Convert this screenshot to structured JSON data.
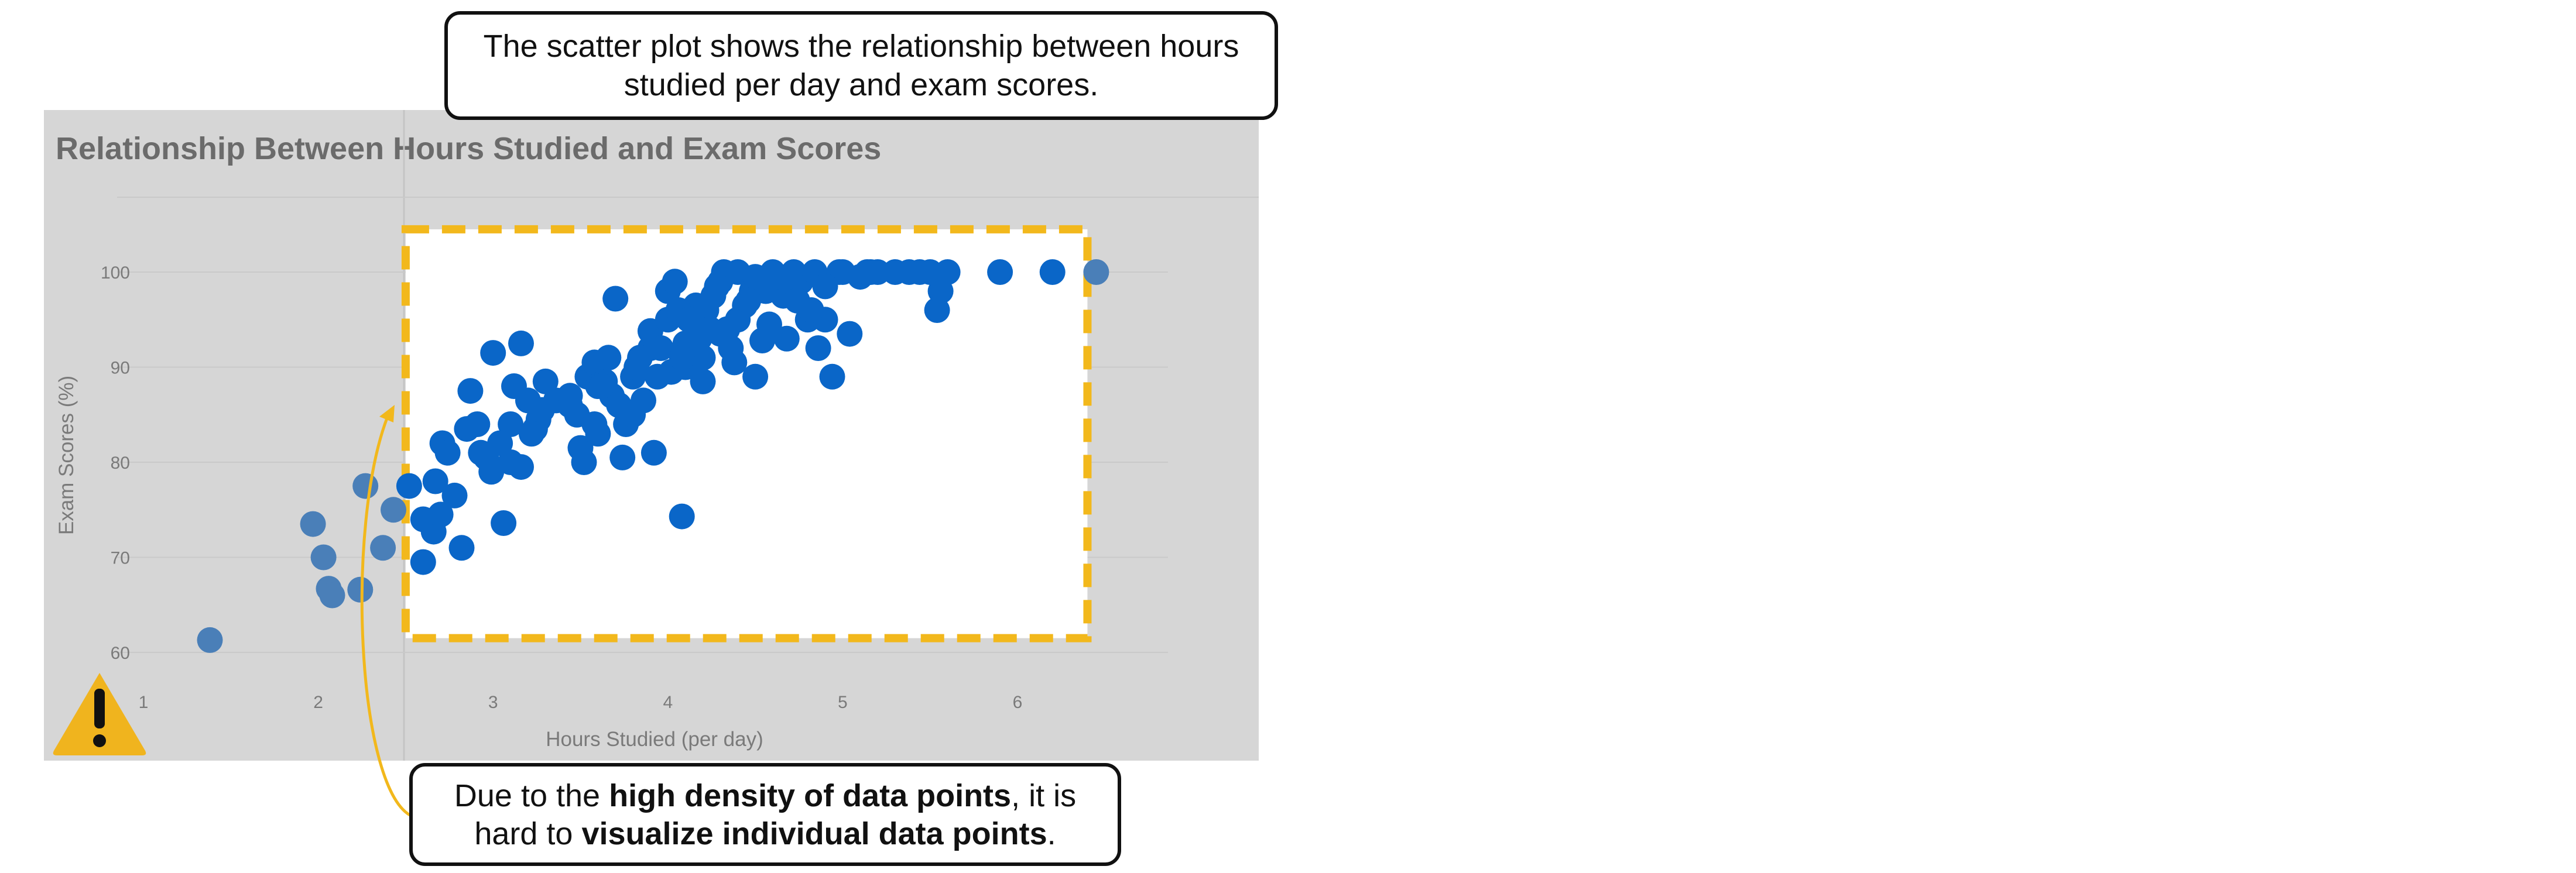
{
  "annotation_top": {
    "line1": "The scatter plot shows the relationship between hours",
    "line2": "studied per day and exam scores."
  },
  "annotation_bottom": {
    "line1_pre": "Due to the ",
    "line1_bold": "high density of data points",
    "line1_post": ", it is",
    "line2_pre": "hard to ",
    "line2_bold": "visualize individual data points",
    "line2_post": "."
  },
  "warning_icon": {
    "icon": "warning-triangle-icon",
    "color": "#f0b41e"
  },
  "colors": {
    "panel": "#d6d6d6",
    "point": "#0a66c8",
    "point_faded": "#4a7fb8",
    "highlight_border": "#f2b81c",
    "title": "#6b6b6b",
    "axis_text": "#7a7a7a"
  },
  "chart_data": {
    "type": "scatter",
    "title": "Relationship Between Hours Studied and Exam Scores",
    "xlabel": "Hours Studied (per day)",
    "ylabel": "Exam Scores (%)",
    "xlim": [
      1,
      6.8
    ],
    "ylim": [
      58,
      102
    ],
    "xticks": [
      "1",
      "2",
      "3",
      "4",
      "5",
      "6"
    ],
    "yticks": [
      "60",
      "70",
      "80",
      "90",
      "100"
    ],
    "grid": "horizontal",
    "highlight_region": {
      "x": [
        2.5,
        6.4
      ],
      "y": [
        61.5,
        104.5
      ]
    },
    "x": [
      1.38,
      1.97,
      2.03,
      2.06,
      2.08,
      2.24,
      2.27,
      2.37,
      2.43,
      2.52,
      2.6,
      2.6,
      2.66,
      2.67,
      2.7,
      2.71,
      2.74,
      2.82,
      2.85,
      2.87,
      2.91,
      2.93,
      2.99,
      3.0,
      3.06,
      3.1,
      3.1,
      3.16,
      3.2,
      3.24,
      3.26,
      3.3,
      3.36,
      3.4,
      3.44,
      3.5,
      3.52,
      3.54,
      3.58,
      3.6,
      3.6,
      3.64,
      3.66,
      3.7,
      3.74,
      3.76,
      3.8,
      3.8,
      3.82,
      3.86,
      3.9,
      3.92,
      4.0,
      4.0,
      4.04,
      4.08,
      4.1,
      4.1,
      4.14,
      4.16,
      4.2,
      4.2,
      4.22,
      4.26,
      4.3,
      4.32,
      4.36,
      4.4,
      4.44,
      4.48,
      4.5,
      4.54,
      4.6,
      4.66,
      4.7,
      4.72,
      4.76,
      4.8,
      4.84,
      4.9,
      4.94,
      4.98,
      5.04,
      5.1,
      5.14,
      5.16,
      5.3,
      5.38,
      5.44,
      5.5,
      5.54,
      5.56,
      5.6,
      5.9,
      6.2,
      6.45,
      3.12,
      3.48,
      3.96,
      4.06,
      4.18,
      4.28,
      4.38,
      4.58,
      4.74,
      4.86,
      3.04,
      3.28,
      3.68,
      3.9,
      4.12,
      4.24,
      4.5,
      4.68,
      4.82,
      5.0,
      2.78,
      2.96,
      3.22,
      3.44,
      3.62,
      3.84,
      4.02,
      4.3,
      4.4,
      4.56,
      3.16,
      3.58,
      3.72,
      3.94,
      4.08,
      4.34,
      4.46,
      4.64,
      4.9,
      5.2
    ],
    "y": [
      61.3,
      73.5,
      70.0,
      66.7,
      66.0,
      66.6,
      77.5,
      71.0,
      75.0,
      77.5,
      74.0,
      69.5,
      72.7,
      78.0,
      74.5,
      82.0,
      81.0,
      71.0,
      83.5,
      87.5,
      84.0,
      81.0,
      79.0,
      91.5,
      73.6,
      80.0,
      84.0,
      92.5,
      86.5,
      83.5,
      84.5,
      88.5,
      86.5,
      86.5,
      87.0,
      81.5,
      80.0,
      89.0,
      90.5,
      83.0,
      88.0,
      88.5,
      91.0,
      97.2,
      80.5,
      84.0,
      85.0,
      89.0,
      90.0,
      86.5,
      93.8,
      81.0,
      95.0,
      98.0,
      99.0,
      74.3,
      90.0,
      92.5,
      95.0,
      96.5,
      88.5,
      91.0,
      96.0,
      97.5,
      99.0,
      100.0,
      92.0,
      100.0,
      96.5,
      98.0,
      99.5,
      92.8,
      100.0,
      97.5,
      99.0,
      100.0,
      99.0,
      95.0,
      100.0,
      95.0,
      89.0,
      100.0,
      93.5,
      99.5,
      100.0,
      100.0,
      100.0,
      100.0,
      100.0,
      100.0,
      96.0,
      98.0,
      100.0,
      100.0,
      100.0,
      100.0,
      88.0,
      85.0,
      92.0,
      96.0,
      93.0,
      98.5,
      90.5,
      94.5,
      97.0,
      92.0,
      82.0,
      85.5,
      87.0,
      92.0,
      95.0,
      94.0,
      89.0,
      93.0,
      96.0,
      100.0,
      76.5,
      80.5,
      83.0,
      86.0,
      88.0,
      91.0,
      89.5,
      93.5,
      95.0,
      98.0,
      79.5,
      84.0,
      86.0,
      89.0,
      91.0,
      94.0,
      97.0,
      99.5,
      98.5,
      100.0
    ]
  }
}
